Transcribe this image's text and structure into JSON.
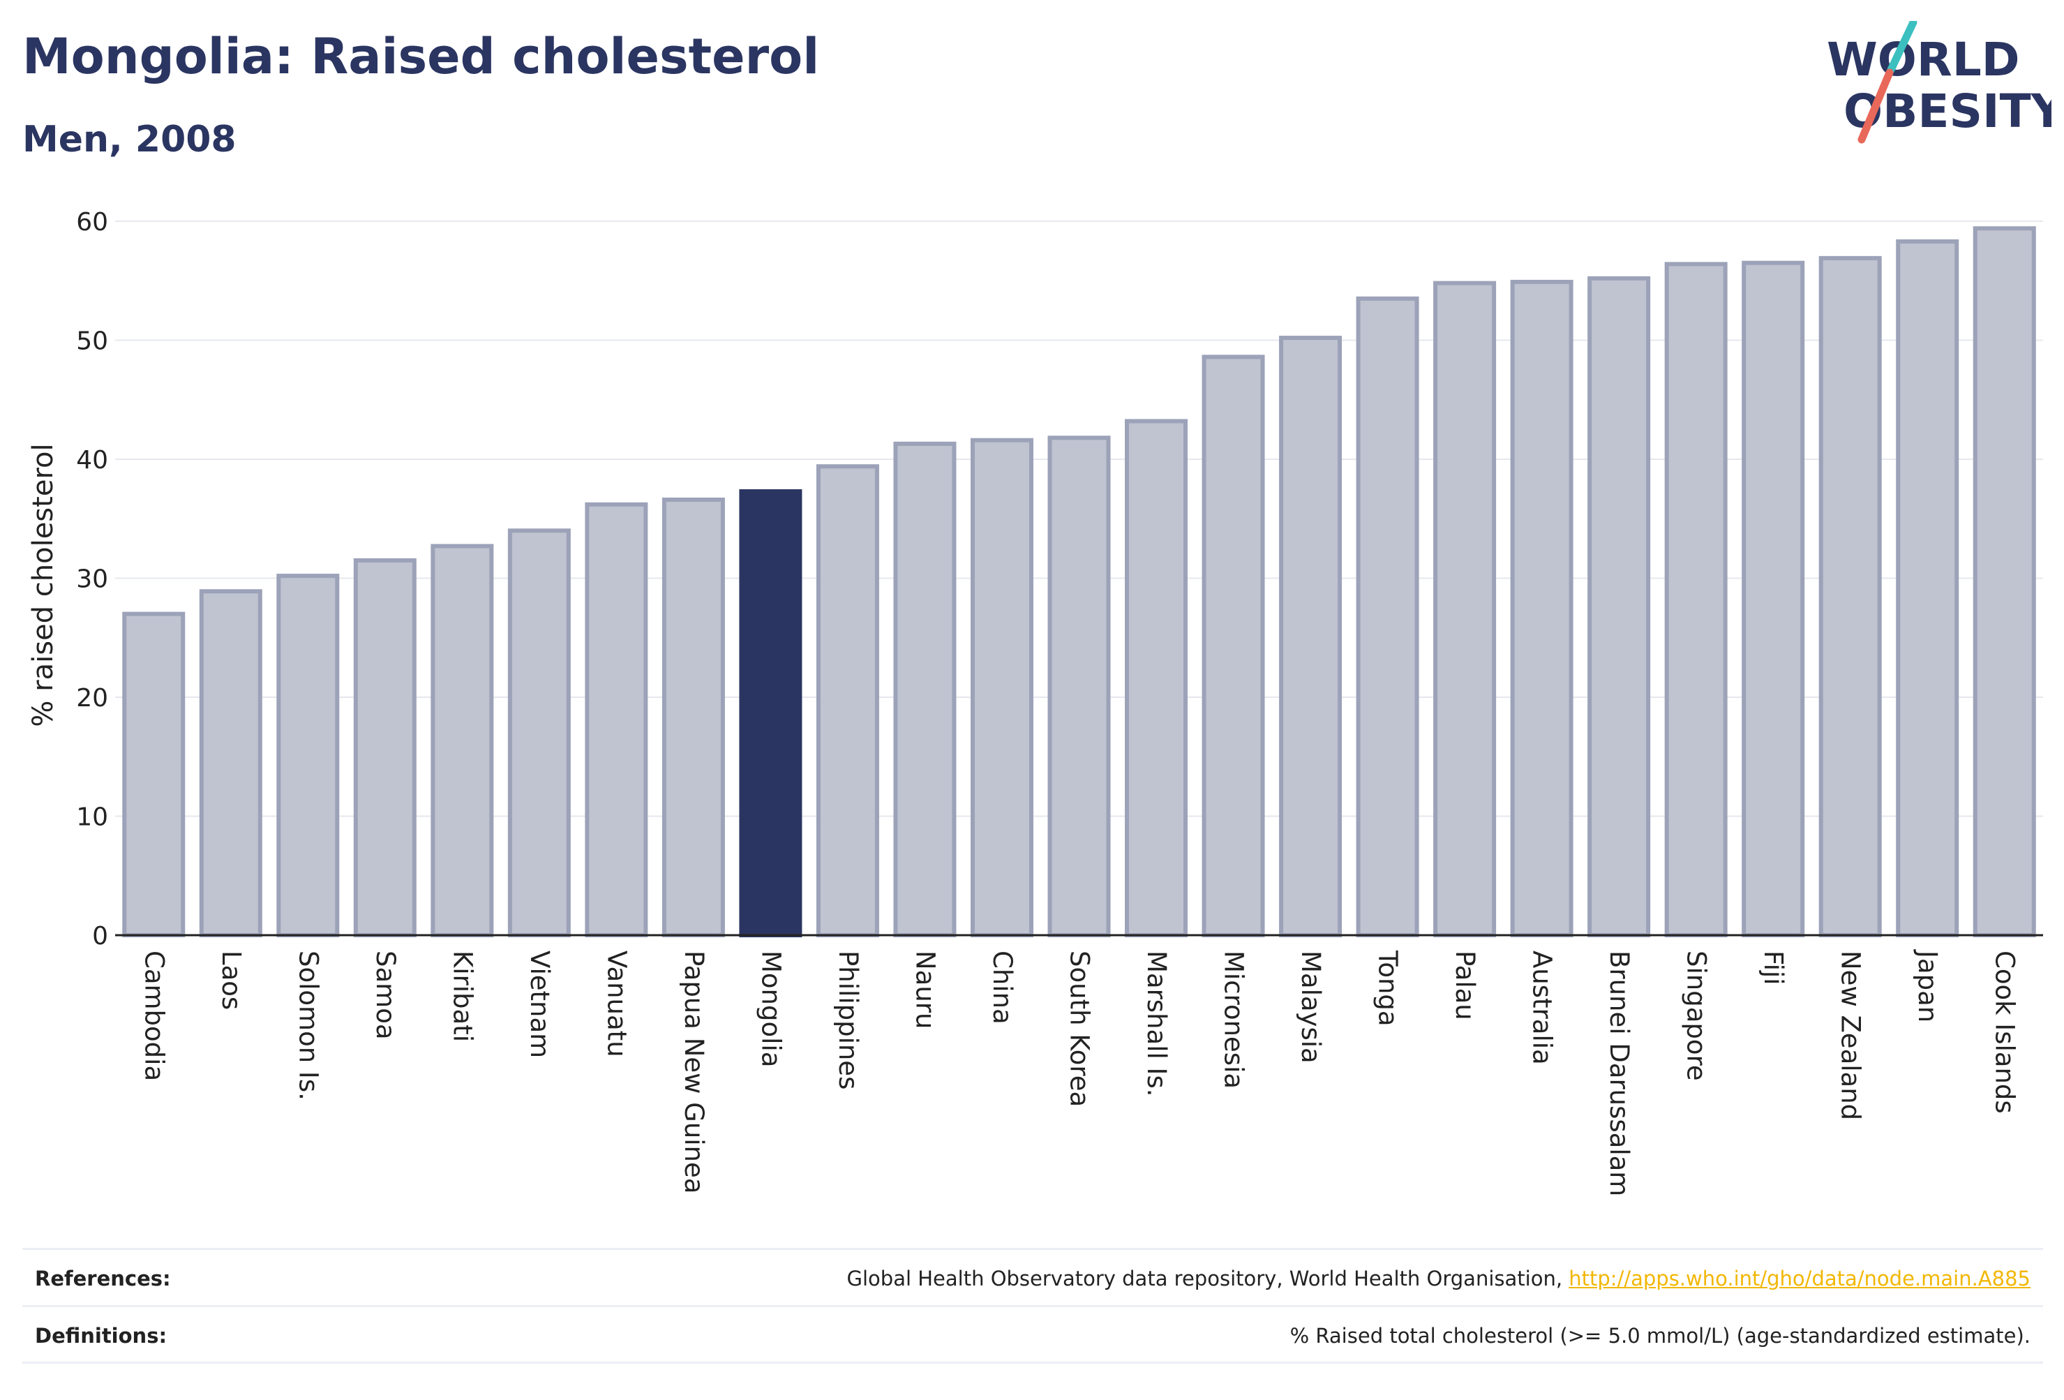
{
  "header": {
    "title": "Mongolia: Raised cholesterol",
    "subtitle": "Men, 2008"
  },
  "logo": {
    "line1": "WORLD",
    "line2": "OBESITY",
    "colors": {
      "text": "#2b3561",
      "slash_top": "#3bbfbf",
      "slash_bottom": "#e8685a"
    }
  },
  "chart_data": {
    "type": "bar",
    "title": "Mongolia: Raised cholesterol",
    "subtitle": "Men, 2008",
    "xlabel": "",
    "ylabel": "% raised cholesterol",
    "ylim": [
      0,
      60
    ],
    "yticks": [
      0,
      10,
      20,
      30,
      40,
      50,
      60
    ],
    "grid": true,
    "highlight": "Mongolia",
    "colors": {
      "bar": "#c0c3d0",
      "bar_border": "#9ca2b8",
      "highlight": "#2b3561"
    },
    "categories": [
      "Cambodia",
      "Laos",
      "Solomon Is.",
      "Samoa",
      "Kiribati",
      "Vietnam",
      "Vanuatu",
      "Papua New Guinea",
      "Mongolia",
      "Philippines",
      "Nauru",
      "China",
      "South Korea",
      "Marshall Is.",
      "Micronesia",
      "Malaysia",
      "Tonga",
      "Palau",
      "Australia",
      "Brunei Darussalam",
      "Singapore",
      "Fiji",
      "New Zealand",
      "Japan",
      "Cook Islands"
    ],
    "values": [
      27.0,
      28.9,
      30.2,
      31.5,
      32.7,
      34.0,
      36.2,
      36.6,
      37.3,
      39.4,
      41.3,
      41.6,
      41.8,
      43.2,
      48.6,
      50.2,
      53.5,
      54.8,
      54.9,
      55.2,
      56.4,
      56.5,
      56.9,
      58.3,
      59.4
    ]
  },
  "footer": {
    "references_label": "References:",
    "references_text": "Global Health Observatory data repository, World Health Organisation, ",
    "references_link": "http://apps.who.int/gho/data/node.main.A885",
    "definitions_label": "Definitions:",
    "definitions_text": "% Raised total cholesterol (>= 5.0 mmol/L) (age-standardized estimate)."
  }
}
